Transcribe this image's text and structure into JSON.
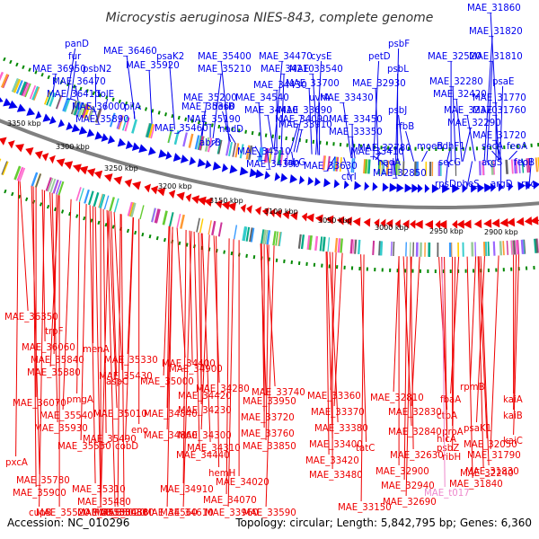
{
  "title": "Microcystis aeruginosa NIES-843, complete genome",
  "footer": {
    "accession": "Accession: NC_010296",
    "summary": "Topology: circular; Length: 5,842,795 bp; Genes: 6,360"
  },
  "colors": {
    "forward_strand": "#0000ee",
    "reverse_strand": "#ee0000",
    "rna_label": "#ee88cc",
    "backbone": "#808080",
    "tick": "#008800",
    "title": "#333333"
  },
  "kbp_ticks": [
    "3350 kbp",
    "3300 kbp",
    "3250 kbp",
    "3200 kbp",
    "3150 kbp",
    "3100 kbp",
    "3050 kbp",
    "3000 kbp",
    "2950 kbp",
    "2900 kbp"
  ],
  "top_labels": [
    "panD",
    "fur",
    "MAE_36950",
    "psbN2",
    "MAE_36470",
    "MAE_36410",
    "MAE_36460",
    "MAE_36000",
    "MAE_35890",
    "folE",
    "pilA",
    "MAE_35920",
    "psaK2",
    "MAE_35400",
    "MAE_35210",
    "MAE_35200",
    "MAE_35360",
    "MAE_35190",
    "MAE_35460",
    "nadD",
    "abrB",
    "MAE_34470",
    "cysE",
    "MAE_34210",
    "MAE_34430",
    "MAE_34540",
    "MAE_34410",
    "desB",
    "MAE_34090",
    "MAE_34510",
    "MAE_34390",
    "uvrA",
    "MAE_33700",
    "MAE_33540",
    "MAE_33430",
    "MAE_33690",
    "MAE_33910",
    "fabG",
    "MAE_33450",
    "MAE_33350",
    "MAE_33410",
    "MAE_33630",
    "ctrI",
    "petD",
    "psbF",
    "psbL",
    "MAE_32930",
    "psbJ",
    "rfbB",
    "nadA",
    "MAE_32780",
    "MAE_32850",
    "MAE_32520",
    "MAE_32280",
    "MAE_32420",
    "MAE_32370",
    "MAE_32290",
    "moeB",
    "ndhF1",
    "secG",
    "rpsD",
    "pheS",
    "MAE_31860",
    "MAE_31820",
    "MAE_31810",
    "psaE",
    "MAE_31770",
    "MAE_31760",
    "MAE_31720",
    "secA",
    "feoA",
    "argS",
    "feoB",
    "argD",
    "rnc"
  ],
  "bottom_labels": [
    "MAE_36350",
    "trpF",
    "MAE_36060",
    "menA",
    "MAE_35840",
    "MAE_35330",
    "MAE_35880",
    "MAE_35430",
    "aspC",
    "MAE_34900",
    "MAE_36070",
    "pmgA",
    "MAE_35000",
    "MAE_35540",
    "MAE_35010",
    "MAE_35930",
    "MAE_35490",
    "eno",
    "pxcA",
    "MAE_35550",
    "cobD",
    "MAE_35780",
    "MAE_35310",
    "MAE_35900",
    "MAE_35480",
    "MAE_34910",
    "cupB",
    "MAE_35500",
    "MAE_35020",
    "MAE_35350",
    "MAE_34880",
    "MAE_35520",
    "MAE_35030",
    "MAE_34560",
    "MAE_34610",
    "MAE_34400",
    "MAE_34280",
    "MAE_34420",
    "MAE_34230",
    "MAE_34840",
    "MAE_34860",
    "MAE_34300",
    "MAE_34310",
    "MAE_34440",
    "hemH",
    "MAE_34020",
    "MAE_34070",
    "MAE_33960",
    "MAE_33590",
    "MAE_33740",
    "MAE_33950",
    "MAE_33720",
    "MAE_33760",
    "MAE_33850",
    "MAE_33360",
    "MAE_33370",
    "MAE_33380",
    "MAE_33400",
    "MAE_33420",
    "MAE_33480",
    "MAE_33150",
    "MAE_32810",
    "MAE_32830",
    "MAE_32840",
    "tatC",
    "MAE_32630",
    "MAE_32900",
    "MAE_32940",
    "MAE_32690",
    "fbaA",
    "ctpA",
    "hicA",
    "psbZ",
    "proA",
    "ribH",
    "rpmB",
    "psaK1",
    "MAE_32050",
    "MAE_32240",
    "MAE_t017",
    "kaiA",
    "kaiB",
    "kaiC",
    "MAE_31790",
    "MAE_31830",
    "MAE_31840"
  ]
}
